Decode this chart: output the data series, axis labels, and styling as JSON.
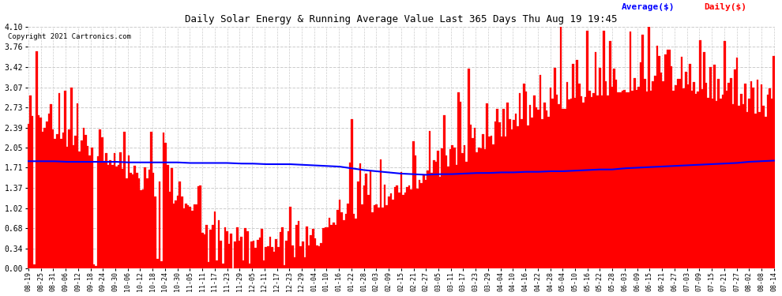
{
  "title": "Daily Solar Energy & Running Average Value Last 365 Days Thu Aug 19 19:45",
  "copyright": "Copyright 2021 Cartronics.com",
  "legend_avg": "Average($)",
  "legend_daily": "Daily($)",
  "ylim": [
    0.0,
    4.1
  ],
  "yticks": [
    0.0,
    0.34,
    0.68,
    1.02,
    1.37,
    1.71,
    2.05,
    2.39,
    2.73,
    3.07,
    3.42,
    3.76,
    4.1
  ],
  "bar_color": "#ff0000",
  "avg_color": "#0000ff",
  "bg_color": "#ffffff",
  "grid_color": "#cccccc",
  "title_color": "#000000",
  "copyright_color": "#000000",
  "n_days": 365,
  "xtick_labels": [
    "08-19",
    "08-25",
    "08-31",
    "09-06",
    "09-12",
    "09-18",
    "09-24",
    "09-30",
    "10-06",
    "10-12",
    "10-18",
    "10-24",
    "10-30",
    "11-05",
    "11-11",
    "11-17",
    "11-23",
    "11-29",
    "12-05",
    "12-11",
    "12-17",
    "12-23",
    "12-29",
    "01-04",
    "01-10",
    "01-16",
    "01-22",
    "01-28",
    "02-03",
    "02-09",
    "02-15",
    "02-21",
    "02-27",
    "03-05",
    "03-11",
    "03-17",
    "03-23",
    "03-29",
    "04-04",
    "04-10",
    "04-16",
    "04-22",
    "04-28",
    "05-04",
    "05-10",
    "05-16",
    "05-22",
    "05-28",
    "06-03",
    "06-09",
    "06-15",
    "06-21",
    "06-27",
    "07-03",
    "07-09",
    "07-15",
    "07-21",
    "07-27",
    "08-02",
    "08-08",
    "08-14"
  ],
  "avg_values": [
    1.82,
    1.82,
    1.82,
    1.81,
    1.81,
    1.81,
    1.81,
    1.81,
    1.8,
    1.8,
    1.8,
    1.8,
    1.8,
    1.79,
    1.79,
    1.79,
    1.79,
    1.78,
    1.78,
    1.77,
    1.77,
    1.77,
    1.76,
    1.75,
    1.74,
    1.73,
    1.7,
    1.67,
    1.65,
    1.63,
    1.61,
    1.6,
    1.59,
    1.6,
    1.6,
    1.61,
    1.62,
    1.62,
    1.63,
    1.63,
    1.64,
    1.64,
    1.65,
    1.65,
    1.66,
    1.67,
    1.68,
    1.68,
    1.7,
    1.71,
    1.72,
    1.73,
    1.74,
    1.75,
    1.76,
    1.77,
    1.78,
    1.79,
    1.81,
    1.82,
    1.83
  ]
}
